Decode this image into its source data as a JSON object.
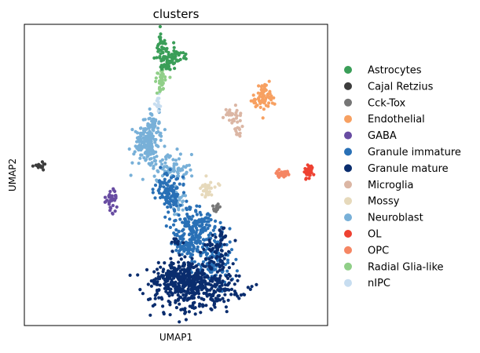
{
  "chart_data": {
    "type": "scatter",
    "title": "clusters",
    "xlabel": "UMAP1",
    "ylabel": "UMAP2",
    "xticks": [],
    "yticks": [],
    "legend_position": "right",
    "series": [
      {
        "name": "Astrocytes",
        "color": "#3a9e58",
        "centers": [
          [
            0.47,
            0.9
          ],
          [
            0.5,
            0.84
          ],
          [
            0.48,
            0.86
          ]
        ]
      },
      {
        "name": "Cajal Retzius",
        "color": "#3d3d3d",
        "centers": [
          [
            0.05,
            0.5
          ]
        ]
      },
      {
        "name": "Cck-Tox",
        "color": "#767676",
        "centers": [
          [
            0.63,
            0.37
          ]
        ]
      },
      {
        "name": "Endothelial",
        "color": "#f7a061",
        "centers": [
          [
            0.77,
            0.73
          ],
          [
            0.8,
            0.75
          ]
        ]
      },
      {
        "name": "GABA",
        "color": "#684ca2",
        "centers": [
          [
            0.29,
            0.39
          ]
        ]
      },
      {
        "name": "Granule immature",
        "color": "#2970b6",
        "centers": [
          [
            0.48,
            0.4
          ],
          [
            0.53,
            0.29
          ],
          [
            0.57,
            0.19
          ]
        ]
      },
      {
        "name": "Granule mature",
        "color": "#0a2d6e",
        "centers": [
          [
            0.54,
            0.12
          ],
          [
            0.62,
            0.25
          ],
          [
            0.5,
            0.07
          ]
        ]
      },
      {
        "name": "Microglia",
        "color": "#dbb6a4",
        "centers": [
          [
            0.69,
            0.67
          ],
          [
            0.7,
            0.61
          ]
        ]
      },
      {
        "name": "Mossy",
        "color": "#e6d9bb",
        "centers": [
          [
            0.61,
            0.43
          ]
        ]
      },
      {
        "name": "Neuroblast",
        "color": "#78b0d8",
        "centers": [
          [
            0.42,
            0.56
          ],
          [
            0.46,
            0.63
          ],
          [
            0.45,
            0.47
          ]
        ]
      },
      {
        "name": "OL",
        "color": "#ee4131",
        "centers": [
          [
            0.94,
            0.49
          ]
        ]
      },
      {
        "name": "OPC",
        "color": "#f58663",
        "centers": [
          [
            0.85,
            0.48
          ]
        ]
      },
      {
        "name": "Radial Glia-like",
        "color": "#90cf88",
        "centers": [
          [
            0.46,
            0.78
          ]
        ]
      },
      {
        "name": "nIPC",
        "color": "#c7ddf0",
        "centers": [
          [
            0.44,
            0.7
          ]
        ]
      }
    ]
  }
}
